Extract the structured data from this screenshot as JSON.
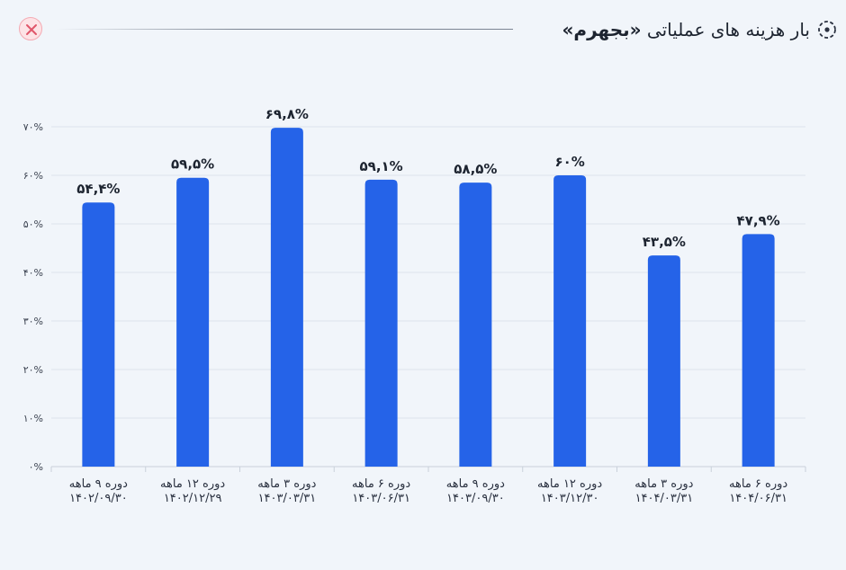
{
  "header": {
    "title_text": "بار هزینه های عملیاتی ",
    "title_company": "«بجهرم»",
    "title_icon": "target-dot-icon",
    "close_icon": "close-icon"
  },
  "colors": {
    "bar": "#2563e8",
    "grid": "#dde3ec",
    "background": "#f1f5fa",
    "close": "#e0566a"
  },
  "chart_data": {
    "type": "bar",
    "categories": [
      [
        "دوره ۹ ماهه",
        "۱۴۰۲/۰۹/۳۰"
      ],
      [
        "دوره ۱۲ ماهه",
        "۱۴۰۲/۱۲/۲۹"
      ],
      [
        "دوره ۳ ماهه",
        "۱۴۰۳/۰۳/۳۱"
      ],
      [
        "دوره ۶ ماهه",
        "۱۴۰۳/۰۶/۳۱"
      ],
      [
        "دوره ۹ ماهه",
        "۱۴۰۳/۰۹/۳۰"
      ],
      [
        "دوره ۱۲ ماهه",
        "۱۴۰۳/۱۲/۳۰"
      ],
      [
        "دوره ۳ ماهه",
        "۱۴۰۴/۰۳/۳۱"
      ],
      [
        "دوره ۶ ماهه",
        "۱۴۰۴/۰۶/۳۱"
      ]
    ],
    "values": [
      54.4,
      59.5,
      69.8,
      59.1,
      58.5,
      60,
      43.5,
      47.9
    ],
    "value_labels": [
      "۵۴,۴%",
      "۵۹,۵%",
      "۶۹,۸%",
      "۵۹,۱%",
      "۵۸,۵%",
      "۶۰%",
      "۴۳,۵%",
      "۴۷,۹%"
    ],
    "y_ticks": [
      0,
      10,
      20,
      30,
      40,
      50,
      60,
      70
    ],
    "y_tick_labels": [
      "۰%",
      "۱۰%",
      "۲۰%",
      "۳۰%",
      "۴۰%",
      "۵۰%",
      "۶۰%",
      "۷۰%"
    ],
    "ylim": [
      0,
      70
    ],
    "grid": true
  }
}
